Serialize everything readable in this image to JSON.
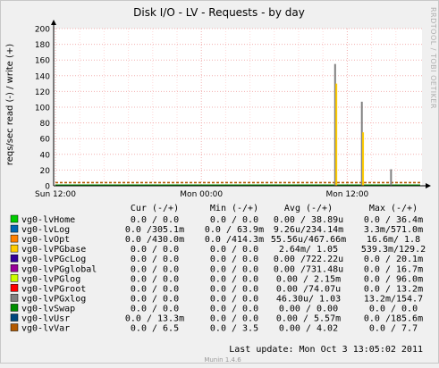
{
  "chart_data": {
    "type": "line",
    "title": "Disk I/O - LV - Requests - by day",
    "ylabel": "reqs/sec read (-) / write (+)",
    "side_label": "RRDTOOL / TOBI OETIKER",
    "footer": "Munin 1.4.6",
    "last_update": "Last update: Mon Oct  3 13:05:02 2011",
    "ylim": [
      0,
      200
    ],
    "yticks": [
      0,
      20,
      40,
      60,
      80,
      100,
      120,
      140,
      160,
      180,
      200
    ],
    "xlim": [
      0,
      30
    ],
    "xticks": [
      {
        "label": "Sun 12:00",
        "x": 0
      },
      {
        "label": "Mon 00:00",
        "x": 12
      },
      {
        "label": "Mon 12:00",
        "x": 24
      }
    ],
    "legend_headers": [
      "Cur (-/+)",
      "Min (-/+)",
      "Avg (-/+)",
      "Max (-/+)"
    ],
    "series": [
      {
        "name": "vg0-lvHome",
        "color": "#00cc00",
        "cur": "0.0 /  0.0",
        "min": "0.0 /  0.0",
        "avg": "0.00 / 38.89u",
        "max": "0.0 / 36.4m"
      },
      {
        "name": "vg0-lvLog",
        "color": "#0066b3",
        "cur": "0.0 /305.1m",
        "min": "0.0 / 63.9m",
        "avg": "9.26u/234.14m",
        "max": "3.3m/571.0m"
      },
      {
        "name": "vg0-lvOpt",
        "color": "#ff8000",
        "cur": "0.0 /430.0m",
        "min": "0.0 /414.3m",
        "avg": "55.56u/467.66m",
        "max": "16.6m/  1.8"
      },
      {
        "name": "vg0-lvPGbase",
        "color": "#ffcc00",
        "cur": "0.0 /  0.0",
        "min": "0.0 /  0.0",
        "avg": "2.64m/ 1.05",
        "max": "539.3m/129.2"
      },
      {
        "name": "vg0-lvPGcLog",
        "color": "#330099",
        "cur": "0.0 /  0.0",
        "min": "0.0 /  0.0",
        "avg": "0.00 /722.22u",
        "max": "0.0 / 20.1m"
      },
      {
        "name": "vg0-lvPGglobal",
        "color": "#990099",
        "cur": "0.0 /  0.0",
        "min": "0.0 /  0.0",
        "avg": "0.00 /731.48u",
        "max": "0.0 / 16.7m"
      },
      {
        "name": "vg0-lvPGlog",
        "color": "#ccff00",
        "cur": "0.0 /  0.0",
        "min": "0.0 /  0.0",
        "avg": "0.00 / 2.15m",
        "max": "0.0 / 96.0m"
      },
      {
        "name": "vg0-lvPGroot",
        "color": "#ff0000",
        "cur": "0.0 /  0.0",
        "min": "0.0 /  0.0",
        "avg": "0.00 /74.07u",
        "max": "0.0 / 13.2m"
      },
      {
        "name": "vg0-lvPGxlog",
        "color": "#808080",
        "cur": "0.0 /  0.0",
        "min": "0.0 /  0.0",
        "avg": "46.30u/ 1.03",
        "max": "13.2m/154.7"
      },
      {
        "name": "vg0-lvSwap",
        "color": "#008f00",
        "cur": "0.0 /  0.0",
        "min": "0.0 /  0.0",
        "avg": "0.00 / 0.00",
        "max": "0.0 /  0.0"
      },
      {
        "name": "vg0-lvUsr",
        "color": "#00487d",
        "cur": "0.0 / 13.3m",
        "min": "0.0 /  0.0",
        "avg": "0.00 / 5.57m",
        "max": "0.0 /185.6m"
      },
      {
        "name": "vg0-lvVar",
        "color": "#b35a00",
        "cur": "0.0 /  6.5",
        "min": "0.0 /  3.5",
        "avg": "0.00 / 4.02",
        "max": "0.0 /  7.7"
      }
    ],
    "spikes": [
      {
        "series": "vg0-lvPGxlog",
        "x": 23.0,
        "value": 155
      },
      {
        "series": "vg0-lvPGbase",
        "x": 23.1,
        "value": 130
      },
      {
        "series": "vg0-lvPGxlog",
        "x": 25.2,
        "value": 107
      },
      {
        "series": "vg0-lvPGbase",
        "x": 25.3,
        "value": 68
      },
      {
        "series": "vg0-lvPGxlog",
        "x": 27.6,
        "value": 21
      }
    ],
    "baseline": {
      "series": "vg0-lvVar",
      "value": 4
    }
  }
}
